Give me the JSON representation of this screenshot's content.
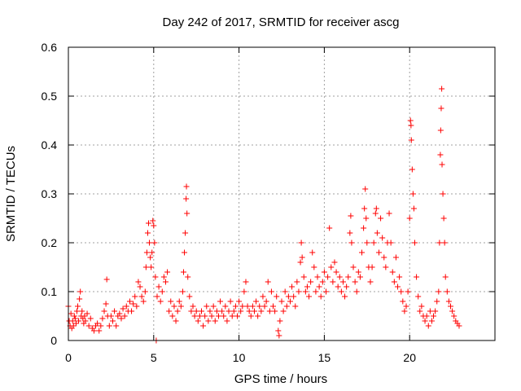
{
  "chart_data": {
    "type": "scatter",
    "title": "Day 242 of 2017, SRMTID for receiver ascg",
    "xlabel": "GPS time / hours",
    "ylabel": "SRMTID / TECUs",
    "xlim": [
      0,
      25
    ],
    "ylim": [
      0,
      0.6
    ],
    "x_ticks": [
      0,
      5,
      10,
      15,
      20
    ],
    "x_tick_labels": [
      "0",
      "5",
      "10",
      "15",
      "20"
    ],
    "y_ticks": [
      0,
      0.1,
      0.2,
      0.3,
      0.4,
      0.5,
      0.6
    ],
    "y_tick_labels": [
      "0",
      "0.1",
      "0.2",
      "0.3",
      "0.4",
      "0.5",
      "0.6"
    ],
    "grid": true,
    "marker": "+",
    "series": [
      {
        "name": "SRMTID",
        "color": "#ff0000",
        "points": [
          [
            0.0,
            0.07
          ],
          [
            0.05,
            0.04
          ],
          [
            0.1,
            0.03
          ],
          [
            0.15,
            0.055
          ],
          [
            0.2,
            0.025
          ],
          [
            0.25,
            0.04
          ],
          [
            0.3,
            0.03
          ],
          [
            0.35,
            0.05
          ],
          [
            0.4,
            0.045
          ],
          [
            0.45,
            0.035
          ],
          [
            0.5,
            0.06
          ],
          [
            0.55,
            0.07
          ],
          [
            0.6,
            0.04
          ],
          [
            0.65,
            0.085
          ],
          [
            0.7,
            0.1
          ],
          [
            0.75,
            0.05
          ],
          [
            0.8,
            0.06
          ],
          [
            0.85,
            0.045
          ],
          [
            0.9,
            0.035
          ],
          [
            0.95,
            0.05
          ],
          [
            1.0,
            0.04
          ],
          [
            1.1,
            0.055
          ],
          [
            1.2,
            0.03
          ],
          [
            1.3,
            0.045
          ],
          [
            1.4,
            0.025
          ],
          [
            1.5,
            0.02
          ],
          [
            1.6,
            0.03
          ],
          [
            1.7,
            0.035
          ],
          [
            1.8,
            0.02
          ],
          [
            1.9,
            0.03
          ],
          [
            2.0,
            0.045
          ],
          [
            2.1,
            0.06
          ],
          [
            2.2,
            0.075
          ],
          [
            2.25,
            0.125
          ],
          [
            2.3,
            0.05
          ],
          [
            2.4,
            0.03
          ],
          [
            2.5,
            0.05
          ],
          [
            2.6,
            0.04
          ],
          [
            2.7,
            0.06
          ],
          [
            2.8,
            0.03
          ],
          [
            2.9,
            0.05
          ],
          [
            3.0,
            0.055
          ],
          [
            3.1,
            0.045
          ],
          [
            3.2,
            0.065
          ],
          [
            3.3,
            0.05
          ],
          [
            3.4,
            0.07
          ],
          [
            3.5,
            0.06
          ],
          [
            3.6,
            0.08
          ],
          [
            3.7,
            0.06
          ],
          [
            3.8,
            0.075
          ],
          [
            3.9,
            0.09
          ],
          [
            4.0,
            0.07
          ],
          [
            4.1,
            0.12
          ],
          [
            4.2,
            0.11
          ],
          [
            4.3,
            0.09
          ],
          [
            4.4,
            0.08
          ],
          [
            4.5,
            0.1
          ],
          [
            4.55,
            0.15
          ],
          [
            4.6,
            0.18
          ],
          [
            4.65,
            0.22
          ],
          [
            4.7,
            0.24
          ],
          [
            4.75,
            0.2
          ],
          [
            4.8,
            0.17
          ],
          [
            4.85,
            0.15
          ],
          [
            4.9,
            0.18
          ],
          [
            4.95,
            0.245
          ],
          [
            5.0,
            0.235
          ],
          [
            5.05,
            0.2
          ],
          [
            5.1,
            0.13
          ],
          [
            5.15,
            0.0
          ],
          [
            5.2,
            0.09
          ],
          [
            5.3,
            0.11
          ],
          [
            5.4,
            0.08
          ],
          [
            5.5,
            0.1
          ],
          [
            5.6,
            0.13
          ],
          [
            5.7,
            0.12
          ],
          [
            5.8,
            0.14
          ],
          [
            5.9,
            0.06
          ],
          [
            6.0,
            0.08
          ],
          [
            6.1,
            0.05
          ],
          [
            6.2,
            0.07
          ],
          [
            6.3,
            0.04
          ],
          [
            6.4,
            0.06
          ],
          [
            6.5,
            0.08
          ],
          [
            6.6,
            0.07
          ],
          [
            6.7,
            0.1
          ],
          [
            6.75,
            0.14
          ],
          [
            6.8,
            0.18
          ],
          [
            6.85,
            0.22
          ],
          [
            6.9,
            0.29
          ],
          [
            6.92,
            0.315
          ],
          [
            6.95,
            0.26
          ],
          [
            7.0,
            0.13
          ],
          [
            7.1,
            0.09
          ],
          [
            7.2,
            0.06
          ],
          [
            7.3,
            0.07
          ],
          [
            7.4,
            0.05
          ],
          [
            7.5,
            0.06
          ],
          [
            7.6,
            0.04
          ],
          [
            7.7,
            0.05
          ],
          [
            7.8,
            0.06
          ],
          [
            7.9,
            0.03
          ],
          [
            8.0,
            0.05
          ],
          [
            8.1,
            0.07
          ],
          [
            8.2,
            0.04
          ],
          [
            8.3,
            0.06
          ],
          [
            8.4,
            0.05
          ],
          [
            8.5,
            0.07
          ],
          [
            8.6,
            0.04
          ],
          [
            8.7,
            0.06
          ],
          [
            8.8,
            0.05
          ],
          [
            8.9,
            0.08
          ],
          [
            9.0,
            0.06
          ],
          [
            9.1,
            0.05
          ],
          [
            9.2,
            0.07
          ],
          [
            9.3,
            0.04
          ],
          [
            9.4,
            0.06
          ],
          [
            9.5,
            0.08
          ],
          [
            9.6,
            0.05
          ],
          [
            9.7,
            0.06
          ],
          [
            9.8,
            0.07
          ],
          [
            9.9,
            0.05
          ],
          [
            10.0,
            0.08
          ],
          [
            10.1,
            0.06
          ],
          [
            10.2,
            0.07
          ],
          [
            10.3,
            0.1
          ],
          [
            10.4,
            0.12
          ],
          [
            10.5,
            0.07
          ],
          [
            10.6,
            0.06
          ],
          [
            10.7,
            0.05
          ],
          [
            10.8,
            0.07
          ],
          [
            10.9,
            0.06
          ],
          [
            11.0,
            0.08
          ],
          [
            11.1,
            0.05
          ],
          [
            11.2,
            0.07
          ],
          [
            11.3,
            0.06
          ],
          [
            11.4,
            0.09
          ],
          [
            11.5,
            0.07
          ],
          [
            11.6,
            0.08
          ],
          [
            11.7,
            0.12
          ],
          [
            11.8,
            0.06
          ],
          [
            11.9,
            0.1
          ],
          [
            12.0,
            0.07
          ],
          [
            12.1,
            0.06
          ],
          [
            12.2,
            0.09
          ],
          [
            12.3,
            0.02
          ],
          [
            12.35,
            0.01
          ],
          [
            12.4,
            0.04
          ],
          [
            12.5,
            0.08
          ],
          [
            12.6,
            0.06
          ],
          [
            12.7,
            0.1
          ],
          [
            12.8,
            0.07
          ],
          [
            12.9,
            0.09
          ],
          [
            13.0,
            0.08
          ],
          [
            13.1,
            0.11
          ],
          [
            13.2,
            0.09
          ],
          [
            13.3,
            0.07
          ],
          [
            13.4,
            0.12
          ],
          [
            13.5,
            0.1
          ],
          [
            13.6,
            0.16
          ],
          [
            13.65,
            0.2
          ],
          [
            13.7,
            0.17
          ],
          [
            13.8,
            0.13
          ],
          [
            13.9,
            0.1
          ],
          [
            14.0,
            0.11
          ],
          [
            14.1,
            0.09
          ],
          [
            14.2,
            0.12
          ],
          [
            14.3,
            0.18
          ],
          [
            14.4,
            0.15
          ],
          [
            14.5,
            0.1
          ],
          [
            14.6,
            0.13
          ],
          [
            14.7,
            0.11
          ],
          [
            14.8,
            0.09
          ],
          [
            14.9,
            0.12
          ],
          [
            15.0,
            0.14
          ],
          [
            15.1,
            0.1
          ],
          [
            15.2,
            0.13
          ],
          [
            15.3,
            0.23
          ],
          [
            15.4,
            0.15
          ],
          [
            15.5,
            0.12
          ],
          [
            15.6,
            0.16
          ],
          [
            15.7,
            0.14
          ],
          [
            15.8,
            0.11
          ],
          [
            15.9,
            0.13
          ],
          [
            16.0,
            0.1
          ],
          [
            16.1,
            0.12
          ],
          [
            16.2,
            0.09
          ],
          [
            16.3,
            0.11
          ],
          [
            16.4,
            0.13
          ],
          [
            16.5,
            0.22
          ],
          [
            16.55,
            0.255
          ],
          [
            16.6,
            0.2
          ],
          [
            16.7,
            0.15
          ],
          [
            16.8,
            0.12
          ],
          [
            16.9,
            0.1
          ],
          [
            17.0,
            0.14
          ],
          [
            17.1,
            0.13
          ],
          [
            17.2,
            0.18
          ],
          [
            17.3,
            0.23
          ],
          [
            17.35,
            0.27
          ],
          [
            17.4,
            0.31
          ],
          [
            17.45,
            0.25
          ],
          [
            17.5,
            0.2
          ],
          [
            17.6,
            0.15
          ],
          [
            17.7,
            0.12
          ],
          [
            17.8,
            0.15
          ],
          [
            17.9,
            0.2
          ],
          [
            18.0,
            0.26
          ],
          [
            18.05,
            0.27
          ],
          [
            18.1,
            0.22
          ],
          [
            18.2,
            0.18
          ],
          [
            18.3,
            0.25
          ],
          [
            18.4,
            0.21
          ],
          [
            18.5,
            0.17
          ],
          [
            18.6,
            0.15
          ],
          [
            18.7,
            0.2
          ],
          [
            18.8,
            0.26
          ],
          [
            18.9,
            0.2
          ],
          [
            19.0,
            0.14
          ],
          [
            19.1,
            0.12
          ],
          [
            19.2,
            0.17
          ],
          [
            19.3,
            0.11
          ],
          [
            19.4,
            0.13
          ],
          [
            19.5,
            0.1
          ],
          [
            19.6,
            0.08
          ],
          [
            19.7,
            0.06
          ],
          [
            19.8,
            0.07
          ],
          [
            19.9,
            0.1
          ],
          [
            20.0,
            0.25
          ],
          [
            20.05,
            0.45
          ],
          [
            20.08,
            0.44
          ],
          [
            20.1,
            0.41
          ],
          [
            20.15,
            0.35
          ],
          [
            20.2,
            0.3
          ],
          [
            20.25,
            0.27
          ],
          [
            20.3,
            0.2
          ],
          [
            20.4,
            0.13
          ],
          [
            20.5,
            0.09
          ],
          [
            20.6,
            0.06
          ],
          [
            20.7,
            0.07
          ],
          [
            20.8,
            0.05
          ],
          [
            20.9,
            0.04
          ],
          [
            21.0,
            0.05
          ],
          [
            21.1,
            0.03
          ],
          [
            21.2,
            0.06
          ],
          [
            21.3,
            0.04
          ],
          [
            21.4,
            0.05
          ],
          [
            21.5,
            0.06
          ],
          [
            21.6,
            0.08
          ],
          [
            21.7,
            0.1
          ],
          [
            21.75,
            0.2
          ],
          [
            21.8,
            0.38
          ],
          [
            21.82,
            0.43
          ],
          [
            21.85,
            0.475
          ],
          [
            21.88,
            0.515
          ],
          [
            21.9,
            0.36
          ],
          [
            21.95,
            0.3
          ],
          [
            22.0,
            0.25
          ],
          [
            22.05,
            0.2
          ],
          [
            22.1,
            0.13
          ],
          [
            22.2,
            0.1
          ],
          [
            22.3,
            0.08
          ],
          [
            22.4,
            0.07
          ],
          [
            22.5,
            0.06
          ],
          [
            22.6,
            0.05
          ],
          [
            22.7,
            0.04
          ],
          [
            22.8,
            0.035
          ],
          [
            22.9,
            0.03
          ]
        ]
      }
    ]
  }
}
